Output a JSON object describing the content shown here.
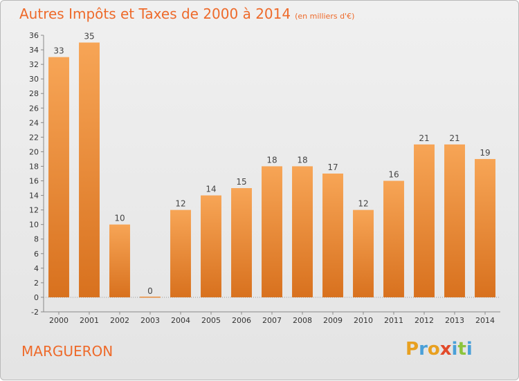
{
  "chart_data": {
    "type": "bar",
    "title": "Autres Impôts et Taxes de 2000 à 2014",
    "subtitle": "(en milliers d'€)",
    "categories": [
      "2000",
      "2001",
      "2002",
      "2003",
      "2004",
      "2005",
      "2006",
      "2007",
      "2008",
      "2009",
      "2010",
      "2011",
      "2012",
      "2013",
      "2014"
    ],
    "values": [
      33,
      35,
      10,
      0,
      12,
      14,
      15,
      18,
      18,
      17,
      12,
      16,
      21,
      21,
      19
    ],
    "ylim": [
      -2,
      36
    ],
    "yticks": [
      -2,
      0,
      2,
      4,
      6,
      8,
      10,
      12,
      14,
      16,
      18,
      20,
      22,
      24,
      26,
      28,
      30,
      32,
      34,
      36
    ],
    "grid": false,
    "bar_color_light": "#f7a556",
    "bar_color_dark": "#d8711e"
  },
  "commune": "MARGUERON",
  "logo": {
    "letters": [
      "P",
      "r",
      "o",
      "x",
      "i",
      "t",
      "i"
    ],
    "colors": [
      "#e8a020",
      "#4aa0d8",
      "#e8a020",
      "#e24a2a",
      "#4aa0d8",
      "#8cc43c",
      "#4aa0d8"
    ]
  },
  "accent_color": "#ee6a2a"
}
